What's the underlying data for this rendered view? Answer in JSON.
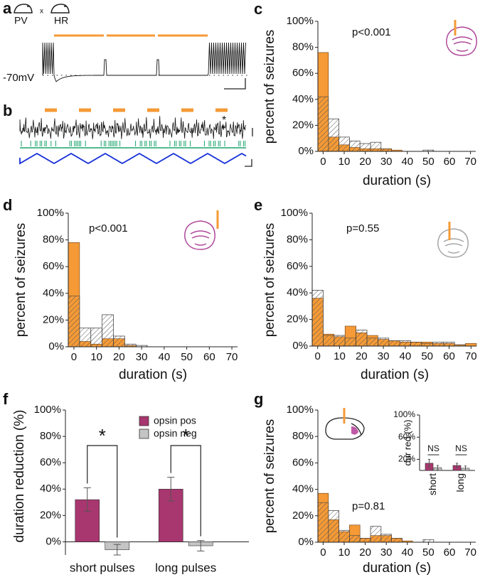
{
  "panel_a": {
    "label": "a",
    "mouse_lines": [
      "PV",
      "HR"
    ],
    "cross": "x",
    "potential": "-70mV"
  },
  "panel_b": {
    "label": "b",
    "marker": "*"
  },
  "chart_data": [
    {
      "type": "histogram",
      "panel": "c",
      "annotation": "p<0.001",
      "xlabel": "duration (s)",
      "ylabel": "percent of seizures",
      "bins": [
        -2.5,
        2.5,
        7.5,
        12.5,
        17.5,
        22.5,
        27.5,
        32.5,
        37.5,
        42.5,
        47.5,
        52.5,
        57.5,
        62.5,
        67.5,
        72.5
      ],
      "series": [
        {
          "color": "#f59a36",
          "hatched": false,
          "values": [
            76,
            11,
            5,
            3,
            2,
            2,
            2,
            1,
            0,
            0,
            0,
            0,
            0,
            0,
            0
          ]
        },
        {
          "color": "#9a9a9a",
          "hatched": true,
          "values": [
            42,
            25,
            11,
            8,
            6,
            7,
            2,
            0,
            0,
            0,
            1,
            0,
            0,
            0,
            0
          ]
        }
      ],
      "xlim": [
        -2.5,
        72.5
      ],
      "xticks": [
        0,
        10,
        20,
        30,
        40,
        50,
        60,
        70
      ],
      "ylim": [
        0,
        100
      ],
      "yticks": [
        {
          "value": 0,
          "label": "0%"
        },
        {
          "value": 20,
          "label": "20%"
        },
        {
          "value": 40,
          "label": "40%"
        },
        {
          "value": 60,
          "label": "60%"
        },
        {
          "value": 80,
          "label": "80%"
        },
        {
          "value": 100,
          "label": "100%"
        }
      ]
    },
    {
      "type": "histogram",
      "panel": "d",
      "annotation": "p<0.001",
      "xlabel": "duration (s)",
      "ylabel": "percent of seizures",
      "bins": [
        -2.5,
        2.5,
        7.5,
        12.5,
        17.5,
        22.5,
        27.5,
        32.5,
        37.5,
        42.5,
        47.5,
        52.5,
        57.5,
        62.5,
        67.5,
        72.5
      ],
      "series": [
        {
          "color": "#f59a36",
          "hatched": false,
          "values": [
            78,
            4,
            2,
            6,
            6,
            1,
            0,
            0,
            0,
            0,
            0,
            0,
            0,
            0,
            0
          ]
        },
        {
          "color": "#9a9a9a",
          "hatched": true,
          "values": [
            38,
            14,
            14,
            24,
            8,
            2,
            1,
            0,
            0,
            0,
            0,
            0,
            0,
            0,
            0
          ]
        }
      ],
      "xlim": [
        -2.5,
        72.5
      ],
      "xticks": [
        0,
        10,
        20,
        30,
        40,
        50,
        60,
        70
      ],
      "ylim": [
        0,
        100
      ],
      "yticks": [
        {
          "value": 0,
          "label": "0%"
        },
        {
          "value": 20,
          "label": "20%"
        },
        {
          "value": 40,
          "label": "40%"
        },
        {
          "value": 60,
          "label": "60%"
        },
        {
          "value": 80,
          "label": "80%"
        },
        {
          "value": 100,
          "label": "100%"
        }
      ]
    },
    {
      "type": "histogram",
      "panel": "e",
      "annotation": "p=0.55",
      "xlabel": "duration (s)",
      "ylabel": "percent of seizures",
      "bins": [
        -2.5,
        2.5,
        7.5,
        12.5,
        17.5,
        22.5,
        27.5,
        32.5,
        37.5,
        42.5,
        47.5,
        52.5,
        57.5,
        62.5,
        67.5,
        72.5
      ],
      "series": [
        {
          "color": "#f59a36",
          "hatched": false,
          "values": [
            36,
            9,
            7,
            15,
            10,
            8,
            5,
            4,
            3,
            3,
            3,
            2,
            2,
            1,
            2
          ]
        },
        {
          "color": "#9a9a9a",
          "hatched": true,
          "values": [
            42,
            8,
            8,
            6,
            12,
            6,
            6,
            4,
            4,
            3,
            2,
            3,
            3,
            1,
            0
          ]
        }
      ],
      "xlim": [
        -2.5,
        72.5
      ],
      "xticks": [
        0,
        10,
        20,
        30,
        40,
        50,
        60,
        70
      ],
      "ylim": [
        0,
        100
      ],
      "yticks": [
        {
          "value": 0,
          "label": "0%"
        },
        {
          "value": 20,
          "label": "20%"
        },
        {
          "value": 40,
          "label": "40%"
        },
        {
          "value": 60,
          "label": "60%"
        },
        {
          "value": 80,
          "label": "80%"
        },
        {
          "value": 100,
          "label": "100%"
        }
      ]
    },
    {
      "type": "bar",
      "panel": "f",
      "ylabel": "duration reduction (%)",
      "categories": [
        "short pulses",
        "long pulses"
      ],
      "series": [
        {
          "name": "opsin pos",
          "color": "#a8366f",
          "values": [
            32,
            40
          ],
          "errors": [
            9,
            9
          ]
        },
        {
          "name": "opsin neg",
          "color": "#c4c4c4",
          "values": [
            -6,
            -3
          ],
          "errors": [
            4,
            4
          ]
        }
      ],
      "annotations": [
        "*",
        "*"
      ],
      "legend": "upper right",
      "ylim": [
        -10,
        100
      ],
      "yticks": [
        {
          "value": 0,
          "label": "0%"
        },
        {
          "value": 20,
          "label": "20%"
        },
        {
          "value": 40,
          "label": "40%"
        },
        {
          "value": 60,
          "label": "60%"
        },
        {
          "value": 80,
          "label": "80%"
        },
        {
          "value": 100,
          "label": "100%"
        }
      ]
    },
    {
      "type": "histogram",
      "panel": "g",
      "annotation": "p=0.81",
      "xlabel": "duration (s)",
      "ylabel": "percent of seizures",
      "bins": [
        -2.5,
        2.5,
        7.5,
        12.5,
        17.5,
        22.5,
        27.5,
        32.5,
        37.5,
        42.5,
        47.5,
        52.5,
        57.5,
        62.5,
        67.5,
        72.5
      ],
      "series": [
        {
          "color": "#f59a36",
          "hatched": false,
          "values": [
            37,
            17,
            8,
            13,
            3,
            5,
            5,
            3,
            1,
            0,
            0,
            0,
            0,
            0,
            0
          ]
        },
        {
          "color": "#9a9a9a",
          "hatched": true,
          "values": [
            30,
            24,
            9,
            5,
            3,
            12,
            6,
            3,
            0,
            0,
            2,
            0,
            0,
            0,
            0
          ]
        }
      ],
      "xlim": [
        -2.5,
        72.5
      ],
      "xticks": [
        0,
        10,
        20,
        30,
        40,
        50,
        60,
        70
      ],
      "ylim": [
        0,
        100
      ],
      "yticks": [
        {
          "value": 0,
          "label": "0%"
        },
        {
          "value": 20,
          "label": "20%"
        },
        {
          "value": 40,
          "label": "40%"
        },
        {
          "value": 60,
          "label": "60%"
        },
        {
          "value": 80,
          "label": "80%"
        },
        {
          "value": 100,
          "label": "100%"
        }
      ]
    },
    {
      "type": "bar",
      "ylabel": "dur red (%)",
      "categories": [
        "short",
        "long"
      ],
      "series": [
        {
          "color": "#a8366f",
          "values": [
            13,
            9
          ],
          "errors": [
            7,
            4
          ]
        },
        {
          "color": "#c4c4c4",
          "values": [
            5,
            4
          ],
          "errors": [
            4,
            4
          ]
        }
      ],
      "annotations": [
        "NS",
        "NS"
      ],
      "ylim": [
        0,
        100
      ],
      "yticks": [
        {
          "value": 20,
          "label": "20%"
        },
        {
          "value": 60,
          "label": "60%"
        },
        {
          "value": 100,
          "label": "100%"
        }
      ]
    }
  ]
}
